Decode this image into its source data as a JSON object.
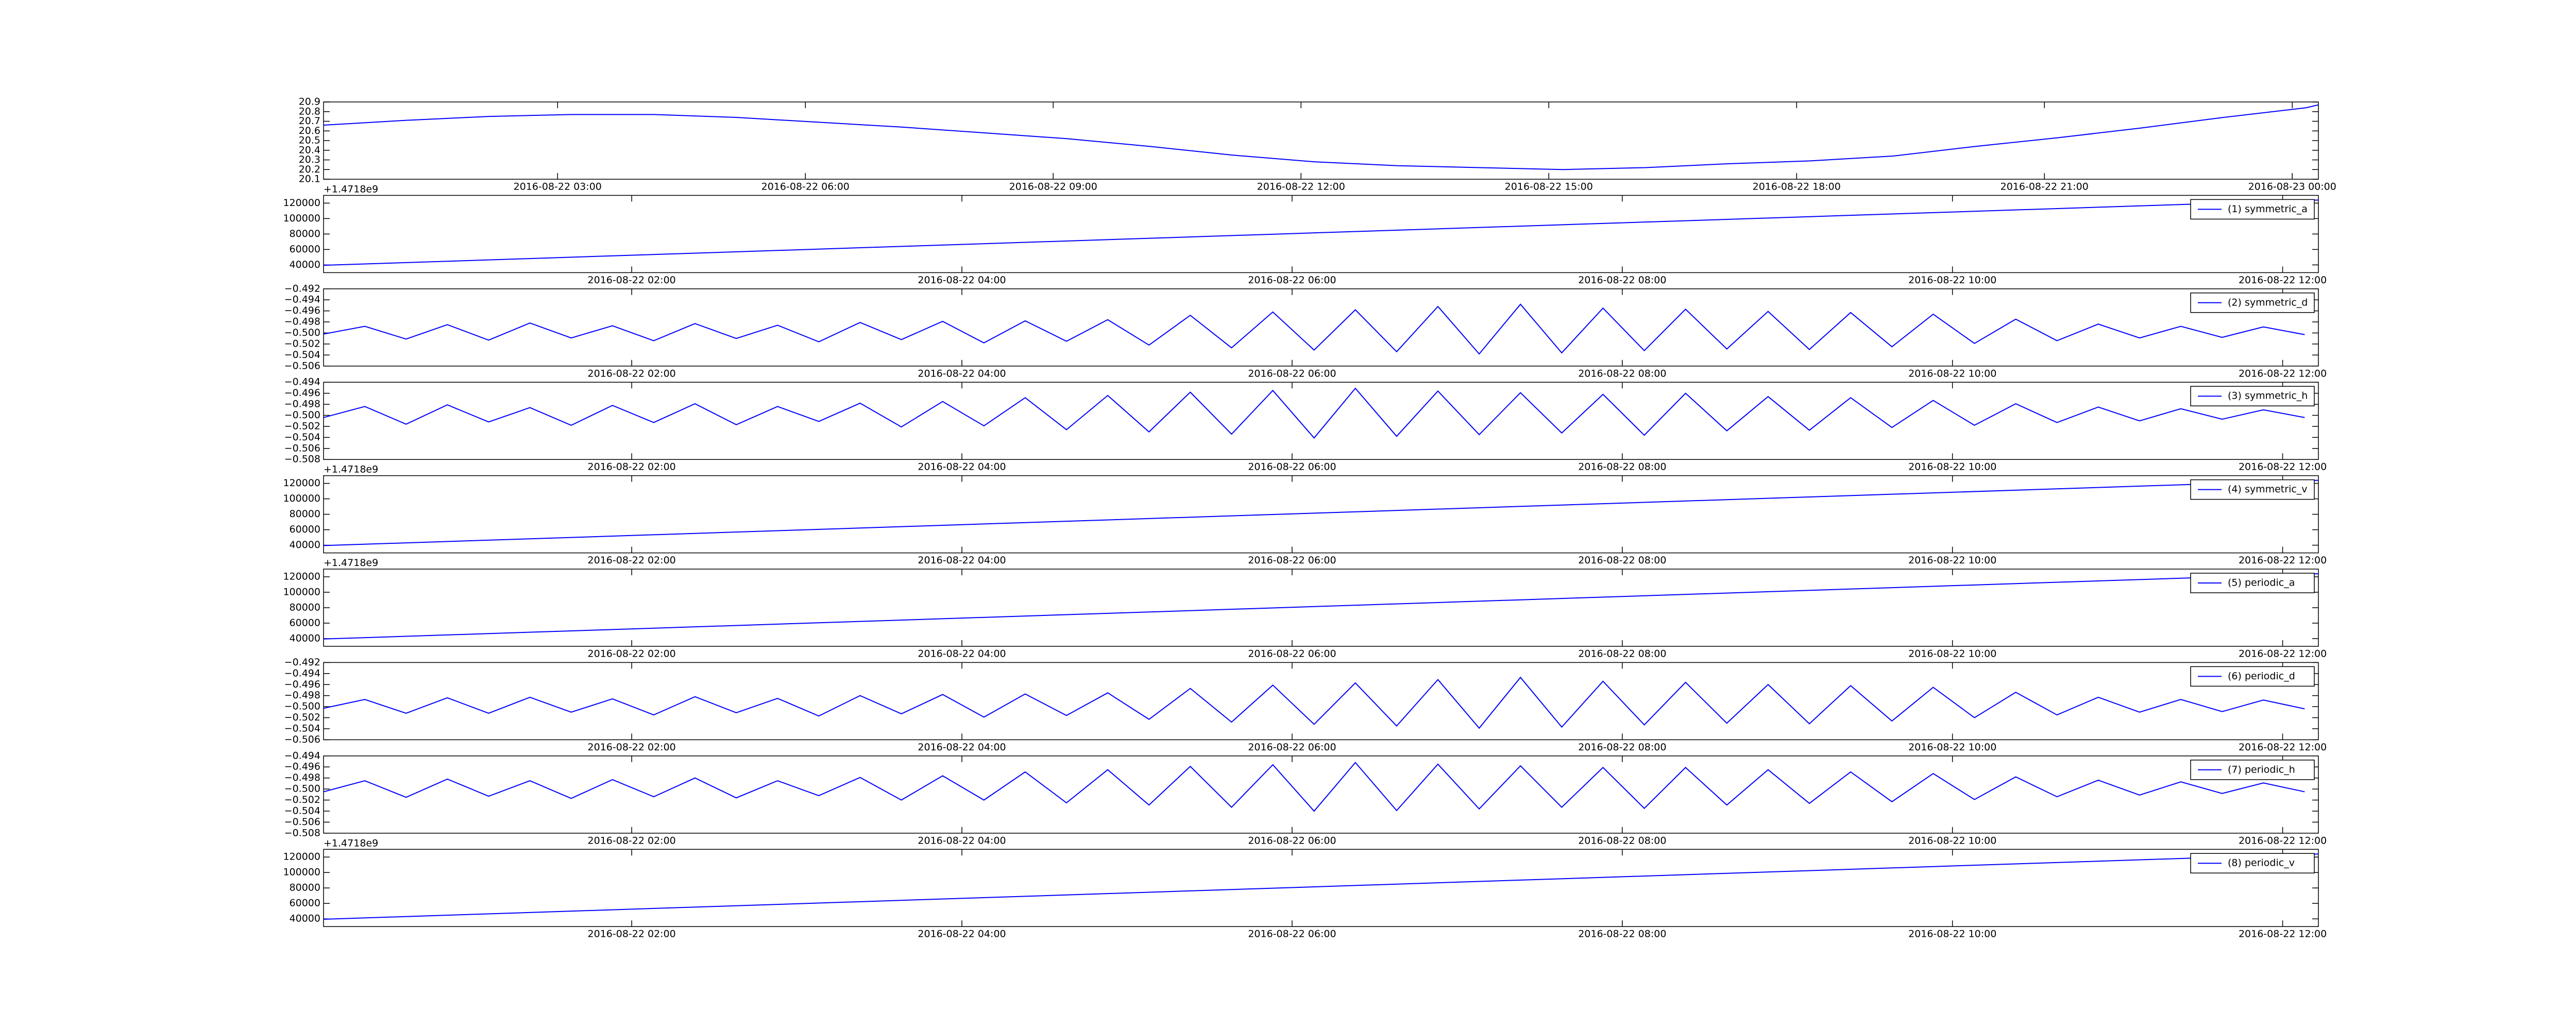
{
  "chart_data": [
    {
      "type": "line",
      "offset_label": "+1.4718e9",
      "x": [
        "2016-08-22 00:10",
        "2016-08-22 01:10",
        "2016-08-22 02:10",
        "2016-08-22 03:10",
        "2016-08-22 04:10",
        "2016-08-22 05:10",
        "2016-08-22 06:10",
        "2016-08-22 07:10",
        "2016-08-22 08:10",
        "2016-08-22 09:10",
        "2016-08-22 10:10",
        "2016-08-22 11:10",
        "2016-08-22 12:10",
        "2016-08-22 13:10",
        "2016-08-22 14:10",
        "2016-08-22 15:10",
        "2016-08-22 16:10",
        "2016-08-22 17:10",
        "2016-08-22 18:10",
        "2016-08-22 19:10",
        "2016-08-22 20:10",
        "2016-08-22 21:10",
        "2016-08-22 22:10",
        "2016-08-22 23:10",
        "2016-08-23 00:10",
        "2016-08-23 00:19"
      ],
      "series": [
        {
          "color": "#0000ff",
          "values": [
            20.66,
            20.71,
            20.75,
            20.77,
            20.77,
            20.74,
            20.69,
            20.64,
            20.58,
            20.52,
            20.44,
            20.35,
            20.28,
            20.24,
            20.22,
            20.2,
            20.22,
            20.26,
            20.29,
            20.34,
            20.44,
            20.53,
            20.63,
            20.74,
            20.84,
            20.87
          ]
        }
      ],
      "xlim": [
        "2016-08-22 00:10",
        "2016-08-23 00:19"
      ],
      "xticks": [
        "2016-08-22 03:00",
        "2016-08-22 06:00",
        "2016-08-22 09:00",
        "2016-08-22 12:00",
        "2016-08-22 15:00",
        "2016-08-22 18:00",
        "2016-08-22 21:00",
        "2016-08-23 00:00"
      ],
      "ylim": [
        20.1,
        20.9
      ],
      "yticks": [
        20.1,
        20.2,
        20.3,
        20.4,
        20.5,
        20.6,
        20.7,
        20.8,
        20.9
      ]
    },
    {
      "type": "line",
      "legend": "upper right",
      "x": [
        "2016-08-22 00:08",
        "2016-08-22 12:13"
      ],
      "series": [
        {
          "name": "(1) symmetric_a",
          "color": "#0000ff",
          "values": [
            39500,
            124000
          ]
        }
      ],
      "xlim": [
        "2016-08-22 00:08",
        "2016-08-22 12:13"
      ],
      "xticks": [
        "2016-08-22 02:00",
        "2016-08-22 04:00",
        "2016-08-22 06:00",
        "2016-08-22 08:00",
        "2016-08-22 10:00",
        "2016-08-22 12:00"
      ],
      "ylim": [
        30000,
        130000
      ],
      "yticks": [
        40000,
        60000,
        80000,
        100000,
        120000
      ]
    },
    {
      "type": "line",
      "legend": "upper right",
      "x": [
        "2016-08-22 00:08",
        "2016-08-22 00:23",
        "2016-08-22 00:38",
        "2016-08-22 00:53",
        "2016-08-22 01:08",
        "2016-08-22 01:23",
        "2016-08-22 01:38",
        "2016-08-22 01:53",
        "2016-08-22 02:08",
        "2016-08-22 02:23",
        "2016-08-22 02:38",
        "2016-08-22 02:53",
        "2016-08-22 03:08",
        "2016-08-22 03:23",
        "2016-08-22 03:38",
        "2016-08-22 03:53",
        "2016-08-22 04:08",
        "2016-08-22 04:23",
        "2016-08-22 04:38",
        "2016-08-22 04:53",
        "2016-08-22 05:08",
        "2016-08-22 05:23",
        "2016-08-22 05:38",
        "2016-08-22 05:53",
        "2016-08-22 06:08",
        "2016-08-22 06:23",
        "2016-08-22 06:38",
        "2016-08-22 06:53",
        "2016-08-22 07:08",
        "2016-08-22 07:23",
        "2016-08-22 07:38",
        "2016-08-22 07:53",
        "2016-08-22 08:08",
        "2016-08-22 08:23",
        "2016-08-22 08:38",
        "2016-08-22 08:53",
        "2016-08-22 09:08",
        "2016-08-22 09:23",
        "2016-08-22 09:38",
        "2016-08-22 09:53",
        "2016-08-22 10:08",
        "2016-08-22 10:23",
        "2016-08-22 10:38",
        "2016-08-22 10:53",
        "2016-08-22 11:08",
        "2016-08-22 11:23",
        "2016-08-22 11:38",
        "2016-08-22 11:53",
        "2016-08-22 12:08"
      ],
      "series": [
        {
          "name": "(2) symmetric_d",
          "color": "#0000ff",
          "values": [
            -0.5002,
            -0.4988,
            -0.5011,
            -0.4985,
            -0.5013,
            -0.4982,
            -0.5009,
            -0.4987,
            -0.5014,
            -0.4983,
            -0.501,
            -0.4986,
            -0.5016,
            -0.4981,
            -0.5012,
            -0.4979,
            -0.5018,
            -0.4978,
            -0.5015,
            -0.4976,
            -0.5022,
            -0.4968,
            -0.5027,
            -0.4962,
            -0.5031,
            -0.4958,
            -0.5034,
            -0.4952,
            -0.5038,
            -0.4948,
            -0.5036,
            -0.4955,
            -0.5032,
            -0.4957,
            -0.5029,
            -0.4961,
            -0.503,
            -0.4963,
            -0.5025,
            -0.4966,
            -0.5019,
            -0.4975,
            -0.5014,
            -0.4984,
            -0.5009,
            -0.4988,
            -0.5008,
            -0.4989,
            -0.5003
          ]
        }
      ],
      "xlim": [
        "2016-08-22 00:08",
        "2016-08-22 12:13"
      ],
      "xticks": [
        "2016-08-22 02:00",
        "2016-08-22 04:00",
        "2016-08-22 06:00",
        "2016-08-22 08:00",
        "2016-08-22 10:00",
        "2016-08-22 12:00"
      ],
      "ylim": [
        -0.506,
        -0.492
      ],
      "yticks": [
        {
          "value": -0.506,
          "label": "−0.506"
        },
        {
          "value": -0.504,
          "label": "−0.504"
        },
        {
          "value": -0.502,
          "label": "−0.502"
        },
        {
          "value": -0.5,
          "label": "−0.500"
        },
        {
          "value": -0.498,
          "label": "−0.498"
        },
        {
          "value": -0.496,
          "label": "−0.496"
        },
        {
          "value": -0.494,
          "label": "−0.494"
        },
        {
          "value": -0.492,
          "label": "−0.492"
        }
      ]
    },
    {
      "type": "line",
      "legend": "upper right",
      "offset_label": "+1.4718e9",
      "x": [
        "2016-08-22 00:08",
        "2016-08-22 00:23",
        "2016-08-22 00:38",
        "2016-08-22 00:53",
        "2016-08-22 01:08",
        "2016-08-22 01:23",
        "2016-08-22 01:38",
        "2016-08-22 01:53",
        "2016-08-22 02:08",
        "2016-08-22 02:23",
        "2016-08-22 02:38",
        "2016-08-22 02:53",
        "2016-08-22 03:08",
        "2016-08-22 03:23",
        "2016-08-22 03:38",
        "2016-08-22 03:53",
        "2016-08-22 04:08",
        "2016-08-22 04:23",
        "2016-08-22 04:38",
        "2016-08-22 04:53",
        "2016-08-22 05:08",
        "2016-08-22 05:23",
        "2016-08-22 05:38",
        "2016-08-22 05:53",
        "2016-08-22 06:08",
        "2016-08-22 06:23",
        "2016-08-22 06:38",
        "2016-08-22 06:53",
        "2016-08-22 07:08",
        "2016-08-22 07:23",
        "2016-08-22 07:38",
        "2016-08-22 07:53",
        "2016-08-22 08:08",
        "2016-08-22 08:23",
        "2016-08-22 08:38",
        "2016-08-22 08:53",
        "2016-08-22 09:08",
        "2016-08-22 09:23",
        "2016-08-22 09:38",
        "2016-08-22 09:53",
        "2016-08-22 10:08",
        "2016-08-22 10:23",
        "2016-08-22 10:38",
        "2016-08-22 10:53",
        "2016-08-22 11:08",
        "2016-08-22 11:23",
        "2016-08-22 11:38",
        "2016-08-22 11:53",
        "2016-08-22 12:08"
      ],
      "series": [
        {
          "name": "(3) symmetric_h",
          "color": "#0000ff",
          "values": [
            -0.5004,
            -0.4984,
            -0.5016,
            -0.4981,
            -0.5012,
            -0.4986,
            -0.5018,
            -0.4982,
            -0.5013,
            -0.4979,
            -0.5017,
            -0.4984,
            -0.5011,
            -0.4978,
            -0.5021,
            -0.4975,
            -0.5019,
            -0.4968,
            -0.5026,
            -0.4964,
            -0.503,
            -0.4958,
            -0.5034,
            -0.4955,
            -0.5041,
            -0.4951,
            -0.5038,
            -0.4956,
            -0.5035,
            -0.4959,
            -0.5032,
            -0.4962,
            -0.5036,
            -0.496,
            -0.5028,
            -0.4966,
            -0.5027,
            -0.4968,
            -0.5022,
            -0.4973,
            -0.5018,
            -0.4979,
            -0.5013,
            -0.4985,
            -0.501,
            -0.4988,
            -0.5007,
            -0.499,
            -0.5004
          ]
        }
      ],
      "xlim": [
        "2016-08-22 00:08",
        "2016-08-22 12:13"
      ],
      "xticks": [
        "2016-08-22 02:00",
        "2016-08-22 04:00",
        "2016-08-22 06:00",
        "2016-08-22 08:00",
        "2016-08-22 10:00",
        "2016-08-22 12:00"
      ],
      "ylim": [
        -0.508,
        -0.494
      ],
      "yticks": [
        {
          "value": -0.508,
          "label": "−0.508"
        },
        {
          "value": -0.506,
          "label": "−0.506"
        },
        {
          "value": -0.504,
          "label": "−0.504"
        },
        {
          "value": -0.502,
          "label": "−0.502"
        },
        {
          "value": -0.5,
          "label": "−0.500"
        },
        {
          "value": -0.498,
          "label": "−0.498"
        },
        {
          "value": -0.496,
          "label": "−0.496"
        },
        {
          "value": -0.494,
          "label": "−0.494"
        }
      ]
    },
    {
      "type": "line",
      "legend": "upper right",
      "offset_label": "+1.4718e9",
      "x": [
        "2016-08-22 00:08",
        "2016-08-22 12:13"
      ],
      "series": [
        {
          "name": "(4) symmetric_v",
          "color": "#0000ff",
          "values": [
            39500,
            124000
          ]
        }
      ],
      "xlim": [
        "2016-08-22 00:08",
        "2016-08-22 12:13"
      ],
      "xticks": [
        "2016-08-22 02:00",
        "2016-08-22 04:00",
        "2016-08-22 06:00",
        "2016-08-22 08:00",
        "2016-08-22 10:00",
        "2016-08-22 12:00"
      ],
      "ylim": [
        30000,
        130000
      ],
      "yticks": [
        40000,
        60000,
        80000,
        100000,
        120000
      ]
    },
    {
      "type": "line",
      "legend": "upper right",
      "x": [
        "2016-08-22 00:08",
        "2016-08-22 12:13"
      ],
      "series": [
        {
          "name": "(5) periodic_a",
          "color": "#0000ff",
          "values": [
            39500,
            124000
          ]
        }
      ],
      "xlim": [
        "2016-08-22 00:08",
        "2016-08-22 12:13"
      ],
      "xticks": [
        "2016-08-22 02:00",
        "2016-08-22 04:00",
        "2016-08-22 06:00",
        "2016-08-22 08:00",
        "2016-08-22 10:00",
        "2016-08-22 12:00"
      ],
      "ylim": [
        30000,
        130000
      ],
      "yticks": [
        40000,
        60000,
        80000,
        100000,
        120000
      ]
    },
    {
      "type": "line",
      "legend": "upper right",
      "x": [
        "2016-08-22 00:08",
        "2016-08-22 00:23",
        "2016-08-22 00:38",
        "2016-08-22 00:53",
        "2016-08-22 01:08",
        "2016-08-22 01:23",
        "2016-08-22 01:38",
        "2016-08-22 01:53",
        "2016-08-22 02:08",
        "2016-08-22 02:23",
        "2016-08-22 02:38",
        "2016-08-22 02:53",
        "2016-08-22 03:08",
        "2016-08-22 03:23",
        "2016-08-22 03:38",
        "2016-08-22 03:53",
        "2016-08-22 04:08",
        "2016-08-22 04:23",
        "2016-08-22 04:38",
        "2016-08-22 04:53",
        "2016-08-22 05:08",
        "2016-08-22 05:23",
        "2016-08-22 05:38",
        "2016-08-22 05:53",
        "2016-08-22 06:08",
        "2016-08-22 06:23",
        "2016-08-22 06:38",
        "2016-08-22 06:53",
        "2016-08-22 07:08",
        "2016-08-22 07:23",
        "2016-08-22 07:38",
        "2016-08-22 07:53",
        "2016-08-22 08:08",
        "2016-08-22 08:23",
        "2016-08-22 08:38",
        "2016-08-22 08:53",
        "2016-08-22 09:08",
        "2016-08-22 09:23",
        "2016-08-22 09:38",
        "2016-08-22 09:53",
        "2016-08-22 10:08",
        "2016-08-22 10:23",
        "2016-08-22 10:38",
        "2016-08-22 10:53",
        "2016-08-22 11:08",
        "2016-08-22 11:23",
        "2016-08-22 11:38",
        "2016-08-22 11:53",
        "2016-08-22 12:08"
      ],
      "series": [
        {
          "name": "(6) periodic_d",
          "color": "#0000ff",
          "values": [
            -0.5003,
            -0.4987,
            -0.5012,
            -0.4984,
            -0.5012,
            -0.4983,
            -0.501,
            -0.4986,
            -0.5015,
            -0.4982,
            -0.5011,
            -0.4985,
            -0.5017,
            -0.498,
            -0.5013,
            -0.4978,
            -0.5019,
            -0.4977,
            -0.5016,
            -0.4975,
            -0.5023,
            -0.4967,
            -0.5028,
            -0.4961,
            -0.5032,
            -0.4957,
            -0.5035,
            -0.4951,
            -0.5039,
            -0.4947,
            -0.5037,
            -0.4954,
            -0.5033,
            -0.4956,
            -0.503,
            -0.496,
            -0.5031,
            -0.4962,
            -0.5026,
            -0.4965,
            -0.502,
            -0.4974,
            -0.5015,
            -0.4983,
            -0.501,
            -0.4987,
            -0.5009,
            -0.4988,
            -0.5004
          ]
        }
      ],
      "xlim": [
        "2016-08-22 00:08",
        "2016-08-22 12:13"
      ],
      "xticks": [
        "2016-08-22 02:00",
        "2016-08-22 04:00",
        "2016-08-22 06:00",
        "2016-08-22 08:00",
        "2016-08-22 10:00",
        "2016-08-22 12:00"
      ],
      "ylim": [
        -0.506,
        -0.492
      ],
      "yticks": [
        {
          "value": -0.506,
          "label": "−0.506"
        },
        {
          "value": -0.504,
          "label": "−0.504"
        },
        {
          "value": -0.502,
          "label": "−0.502"
        },
        {
          "value": -0.5,
          "label": "−0.500"
        },
        {
          "value": -0.498,
          "label": "−0.498"
        },
        {
          "value": -0.496,
          "label": "−0.496"
        },
        {
          "value": -0.494,
          "label": "−0.494"
        },
        {
          "value": -0.492,
          "label": "−0.492"
        }
      ]
    },
    {
      "type": "line",
      "legend": "upper right",
      "offset_label": "+1.4718e9",
      "x": [
        "2016-08-22 00:08",
        "2016-08-22 00:23",
        "2016-08-22 00:38",
        "2016-08-22 00:53",
        "2016-08-22 01:08",
        "2016-08-22 01:23",
        "2016-08-22 01:38",
        "2016-08-22 01:53",
        "2016-08-22 02:08",
        "2016-08-22 02:23",
        "2016-08-22 02:38",
        "2016-08-22 02:53",
        "2016-08-22 03:08",
        "2016-08-22 03:23",
        "2016-08-22 03:38",
        "2016-08-22 03:53",
        "2016-08-22 04:08",
        "2016-08-22 04:23",
        "2016-08-22 04:38",
        "2016-08-22 04:53",
        "2016-08-22 05:08",
        "2016-08-22 05:23",
        "2016-08-22 05:38",
        "2016-08-22 05:53",
        "2016-08-22 06:08",
        "2016-08-22 06:23",
        "2016-08-22 06:38",
        "2016-08-22 06:53",
        "2016-08-22 07:08",
        "2016-08-22 07:23",
        "2016-08-22 07:38",
        "2016-08-22 07:53",
        "2016-08-22 08:08",
        "2016-08-22 08:23",
        "2016-08-22 08:38",
        "2016-08-22 08:53",
        "2016-08-22 09:08",
        "2016-08-22 09:23",
        "2016-08-22 09:38",
        "2016-08-22 09:53",
        "2016-08-22 10:08",
        "2016-08-22 10:23",
        "2016-08-22 10:38",
        "2016-08-22 10:53",
        "2016-08-22 11:08",
        "2016-08-22 11:23",
        "2016-08-22 11:38",
        "2016-08-22 11:53",
        "2016-08-22 12:08"
      ],
      "series": [
        {
          "name": "(7) periodic_h",
          "color": "#0000ff",
          "values": [
            -0.5005,
            -0.4985,
            -0.5015,
            -0.4982,
            -0.5013,
            -0.4985,
            -0.5017,
            -0.4983,
            -0.5014,
            -0.498,
            -0.5016,
            -0.4985,
            -0.5012,
            -0.4979,
            -0.502,
            -0.4976,
            -0.502,
            -0.4969,
            -0.5025,
            -0.4965,
            -0.5029,
            -0.4959,
            -0.5033,
            -0.4956,
            -0.504,
            -0.4952,
            -0.5039,
            -0.4955,
            -0.5036,
            -0.4958,
            -0.5033,
            -0.4961,
            -0.5035,
            -0.4961,
            -0.5029,
            -0.4965,
            -0.5026,
            -0.4969,
            -0.5023,
            -0.4972,
            -0.5019,
            -0.4978,
            -0.5014,
            -0.4984,
            -0.5011,
            -0.4987,
            -0.5008,
            -0.4989,
            -0.5005
          ]
        }
      ],
      "xlim": [
        "2016-08-22 00:08",
        "2016-08-22 12:13"
      ],
      "xticks": [
        "2016-08-22 02:00",
        "2016-08-22 04:00",
        "2016-08-22 06:00",
        "2016-08-22 08:00",
        "2016-08-22 10:00",
        "2016-08-22 12:00"
      ],
      "ylim": [
        -0.508,
        -0.494
      ],
      "yticks": [
        {
          "value": -0.508,
          "label": "−0.508"
        },
        {
          "value": -0.506,
          "label": "−0.506"
        },
        {
          "value": -0.504,
          "label": "−0.504"
        },
        {
          "value": -0.502,
          "label": "−0.502"
        },
        {
          "value": -0.5,
          "label": "−0.500"
        },
        {
          "value": -0.498,
          "label": "−0.498"
        },
        {
          "value": -0.496,
          "label": "−0.496"
        },
        {
          "value": -0.494,
          "label": "−0.494"
        }
      ]
    },
    {
      "type": "line",
      "legend": "upper right",
      "x": [
        "2016-08-22 00:08",
        "2016-08-22 12:13"
      ],
      "series": [
        {
          "name": "(8) periodic_v",
          "color": "#0000ff",
          "values": [
            39500,
            124000
          ]
        }
      ],
      "xlim": [
        "2016-08-22 00:08",
        "2016-08-22 12:13"
      ],
      "xticks": [
        "2016-08-22 02:00",
        "2016-08-22 04:00",
        "2016-08-22 06:00",
        "2016-08-22 08:00",
        "2016-08-22 10:00",
        "2016-08-22 12:00"
      ],
      "ylim": [
        30000,
        130000
      ],
      "yticks": [
        40000,
        60000,
        80000,
        100000,
        120000
      ]
    }
  ]
}
